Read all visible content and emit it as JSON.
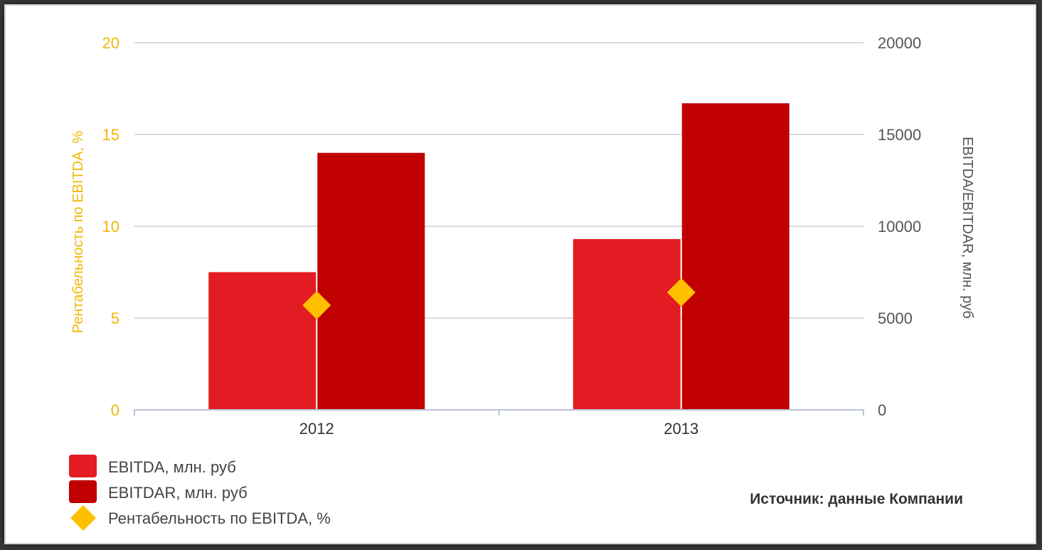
{
  "chart_data": {
    "type": "bar",
    "categories": [
      "2012",
      "2013"
    ],
    "series": [
      {
        "name": "EBITDA, млн. руб",
        "type": "bar",
        "axis": "right",
        "color": "#e31b23",
        "values": [
          7500,
          9300
        ]
      },
      {
        "name": "EBITDAR, млн. руб",
        "type": "bar",
        "axis": "right",
        "color": "#c00000",
        "values": [
          14000,
          16700
        ]
      },
      {
        "name": "Рентабельность по EBITDA, %",
        "type": "scatter",
        "marker": "diamond",
        "axis": "left",
        "color": "#ffc000",
        "values": [
          5.7,
          6.4
        ]
      }
    ],
    "y_left": {
      "label": "Рентабельность по EBITDA, %",
      "ylim": [
        0,
        20
      ],
      "ticks": [
        "0",
        "5",
        "10",
        "15",
        "20"
      ],
      "color": "#f2b705"
    },
    "y_right": {
      "label": "EBITDA/EBITDAR, млн. руб",
      "ylim": [
        0,
        20000
      ],
      "ticks": [
        "0",
        "5000",
        "10000",
        "15000",
        "20000"
      ],
      "color": "#555555"
    },
    "grid": true,
    "legend_position": "bottom-left",
    "source_note": "Источник: данные Компании"
  }
}
